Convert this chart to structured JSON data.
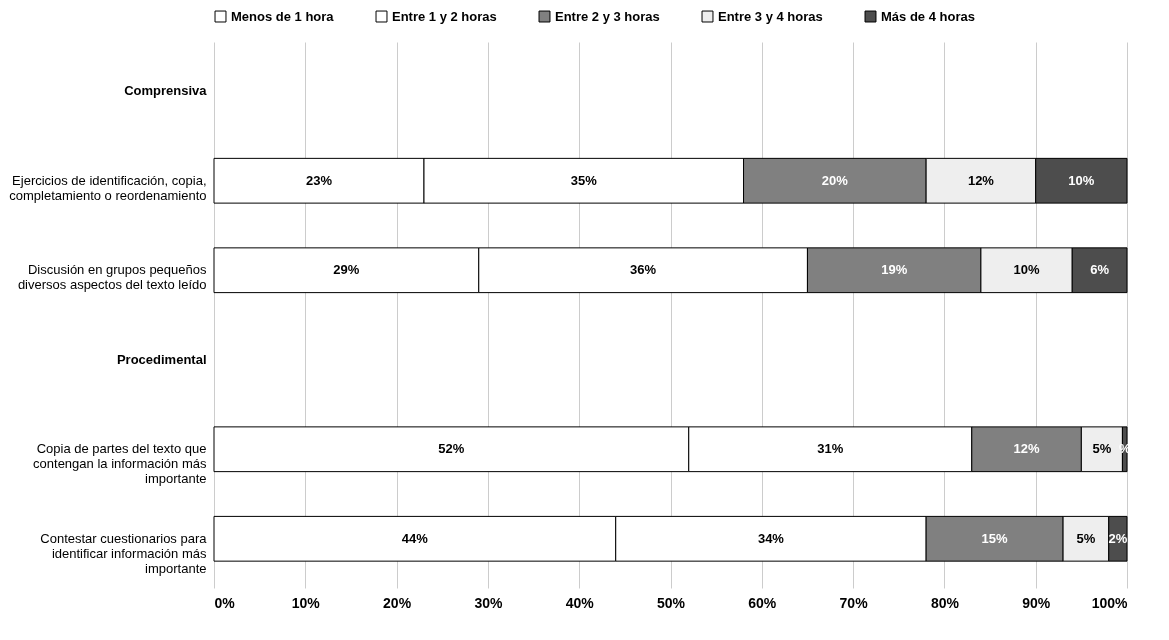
{
  "chart_data": {
    "type": "bar",
    "orientation": "horizontal",
    "stacked": true,
    "categories": [
      "Comprensiva",
      "Ejercicios de identificación, copia, completamiento o reordenamiento",
      "Discusión en grupos pequeños diversos aspectos del texto leído",
      "Procedimental",
      "Copia de partes del texto que contengan la información más importante",
      "Contestar cuestionarios para identificar información más importante"
    ],
    "series": [
      {
        "name": "Menos de 1 hora",
        "color": "#ffffff",
        "values": [
          null,
          23,
          29,
          null,
          52,
          44
        ],
        "value_labels": [
          null,
          "23%",
          "29%",
          null,
          "52%",
          "44%"
        ]
      },
      {
        "name": "Entre 1 y 2 horas",
        "color": "#ffffff",
        "values": [
          null,
          35,
          36,
          null,
          31,
          34
        ],
        "value_labels": [
          null,
          "35%",
          "36%",
          null,
          "31%",
          "34%"
        ]
      },
      {
        "name": "Entre 2 y 3 horas",
        "color": "#808080",
        "values": [
          null,
          20,
          19,
          null,
          12,
          15
        ],
        "value_labels": [
          null,
          "20%",
          "19%",
          null,
          "12%",
          "15%"
        ]
      },
      {
        "name": "Entre 3 y 4 horas",
        "color": "#eeeeee",
        "values": [
          null,
          12,
          10,
          null,
          4.5,
          5
        ],
        "value_labels": [
          null,
          "12%",
          "10%",
          null,
          "5%",
          "5%"
        ]
      },
      {
        "name": "Más de 4 horas",
        "color": "#4d4d4d",
        "values": [
          null,
          10,
          6,
          null,
          0.5,
          2
        ],
        "value_labels": [
          null,
          "10%",
          "6%",
          null,
          "%",
          "2%"
        ]
      }
    ],
    "xlim": [
      0,
      100
    ],
    "xticks": [
      {
        "value": 0,
        "label": "0%"
      },
      {
        "value": 10,
        "label": "10%"
      },
      {
        "value": 20,
        "label": "20%"
      },
      {
        "value": 30,
        "label": "30%"
      },
      {
        "value": 40,
        "label": "40%"
      },
      {
        "value": 50,
        "label": "50%"
      },
      {
        "value": 60,
        "label": "60%"
      },
      {
        "value": 70,
        "label": "70%"
      },
      {
        "value": 80,
        "label": "80%"
      },
      {
        "value": 90,
        "label": "90%"
      },
      {
        "value": 100,
        "label": "100%"
      }
    ],
    "grid": "x",
    "legend": "top"
  }
}
